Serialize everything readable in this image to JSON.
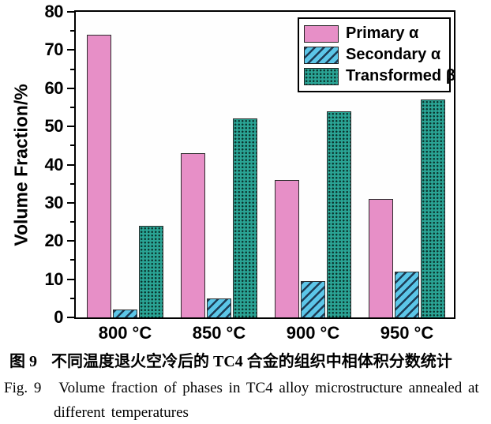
{
  "figure": {
    "caption_cn_label": "图 9",
    "caption_cn_text": "不同温度退火空冷后的 TC4 合金的组织中相体积分数统计",
    "caption_en_label": "Fig. 9",
    "caption_en_text": "Volume fraction of phases in TC4 alloy microstructure annealed at",
    "caption_en_cont": "different temperatures"
  },
  "chart_data": {
    "type": "bar",
    "categories": [
      "800 °C",
      "850 °C",
      "900 °C",
      "950 °C"
    ],
    "series": [
      {
        "name": "Primary α",
        "pattern": "solid",
        "color": "#e78fc7",
        "values": [
          74,
          43,
          36,
          31
        ]
      },
      {
        "name": "Secondary α",
        "pattern": "hatch",
        "color": "#5cc6e8",
        "values": [
          2,
          5,
          9.5,
          12
        ]
      },
      {
        "name": "Transformed β",
        "pattern": "dots",
        "color": "#2aa394",
        "values": [
          24,
          52,
          54,
          57
        ]
      }
    ],
    "ylabel": "Volume Fraction/%",
    "ylim": [
      0,
      80
    ],
    "yticks": [
      0,
      10,
      20,
      30,
      40,
      50,
      60,
      70,
      80
    ],
    "minor_tick_step": 5,
    "grid": false,
    "legend_position": "top-right",
    "bar_outline_color": "#2e2e2e",
    "frame_color": "#000000"
  }
}
